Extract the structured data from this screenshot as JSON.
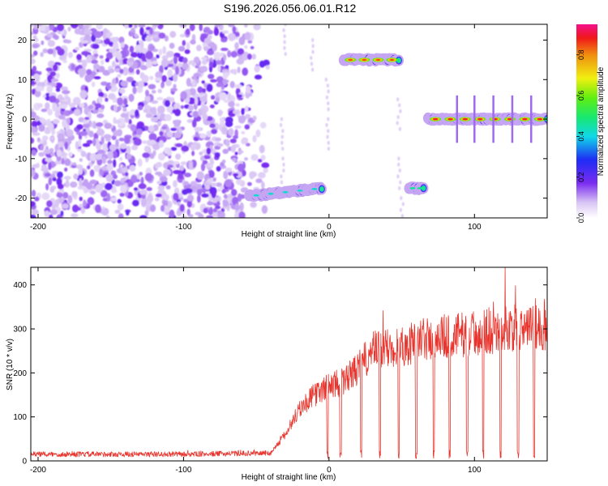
{
  "title": "S196.2026.056.06.01.R12",
  "chart_data": [
    {
      "type": "heatmap",
      "xlabel": "Height of straight line (km)",
      "ylabel": "Frequency (Hz)",
      "xlim": [
        -205,
        150
      ],
      "ylim": [
        -25,
        24
      ],
      "x_ticks": [
        -200,
        -100,
        0,
        100
      ],
      "x_tick_labels": [
        "-200",
        "-100",
        "0",
        "100"
      ],
      "y_ticks": [
        -20,
        -10,
        0,
        10,
        20
      ],
      "y_tick_labels": [
        "-20",
        "-10",
        "0",
        "10",
        "20"
      ],
      "colorbar": {
        "label": "Normalized spectral amplitude",
        "range": [
          0,
          0.95
        ],
        "ticks": [
          0.0,
          0.2,
          0.4,
          0.6,
          0.8
        ],
        "tick_labels": [
          "0.0",
          "0.2",
          "0.4",
          "0.6",
          "0.8"
        ]
      },
      "noise_region": {
        "x": [
          -205,
          -40
        ],
        "y": [
          -25,
          24
        ],
        "level": 0.15
      },
      "tracks": [
        {
          "x": [
            -55,
            -5
          ],
          "y_start": -19.5,
          "y_end": -17.5,
          "peak": 0.45
        },
        {
          "x": [
            10,
            48
          ],
          "y_start": 15,
          "y_end": 15,
          "peak": 0.9
        },
        {
          "x": [
            55,
            65
          ],
          "y_start": -17.5,
          "y_end": -17.5,
          "peak": 0.5
        },
        {
          "x": [
            68,
            150
          ],
          "y_start": 0,
          "y_end": 0,
          "peak": 0.95
        }
      ],
      "grid": false
    },
    {
      "type": "line",
      "xlabel": "Height of straight line (km)",
      "ylabel": "SNR (10 * v/v)",
      "xlim": [
        -205,
        150
      ],
      "ylim": [
        0,
        440
      ],
      "x_ticks": [
        -200,
        -100,
        0,
        100
      ],
      "x_tick_labels": [
        "-200",
        "-100",
        "0",
        "100"
      ],
      "y_ticks": [
        0,
        100,
        200,
        300,
        400
      ],
      "y_tick_labels": [
        "0",
        "100",
        "200",
        "300",
        "400"
      ],
      "color": "#e8342c",
      "trend": {
        "x": [
          -205,
          -100,
          -40,
          -30,
          -20,
          -10,
          -5,
          0,
          10,
          20,
          30,
          50,
          70,
          100,
          120,
          150
        ],
        "y": [
          15,
          15,
          18,
          60,
          120,
          150,
          160,
          170,
          180,
          210,
          250,
          260,
          280,
          290,
          300,
          305
        ]
      },
      "dropouts_x": [
        -1,
        8,
        22,
        35,
        48,
        60,
        72,
        83,
        95,
        106,
        118,
        130,
        141
      ],
      "grid": false
    }
  ]
}
